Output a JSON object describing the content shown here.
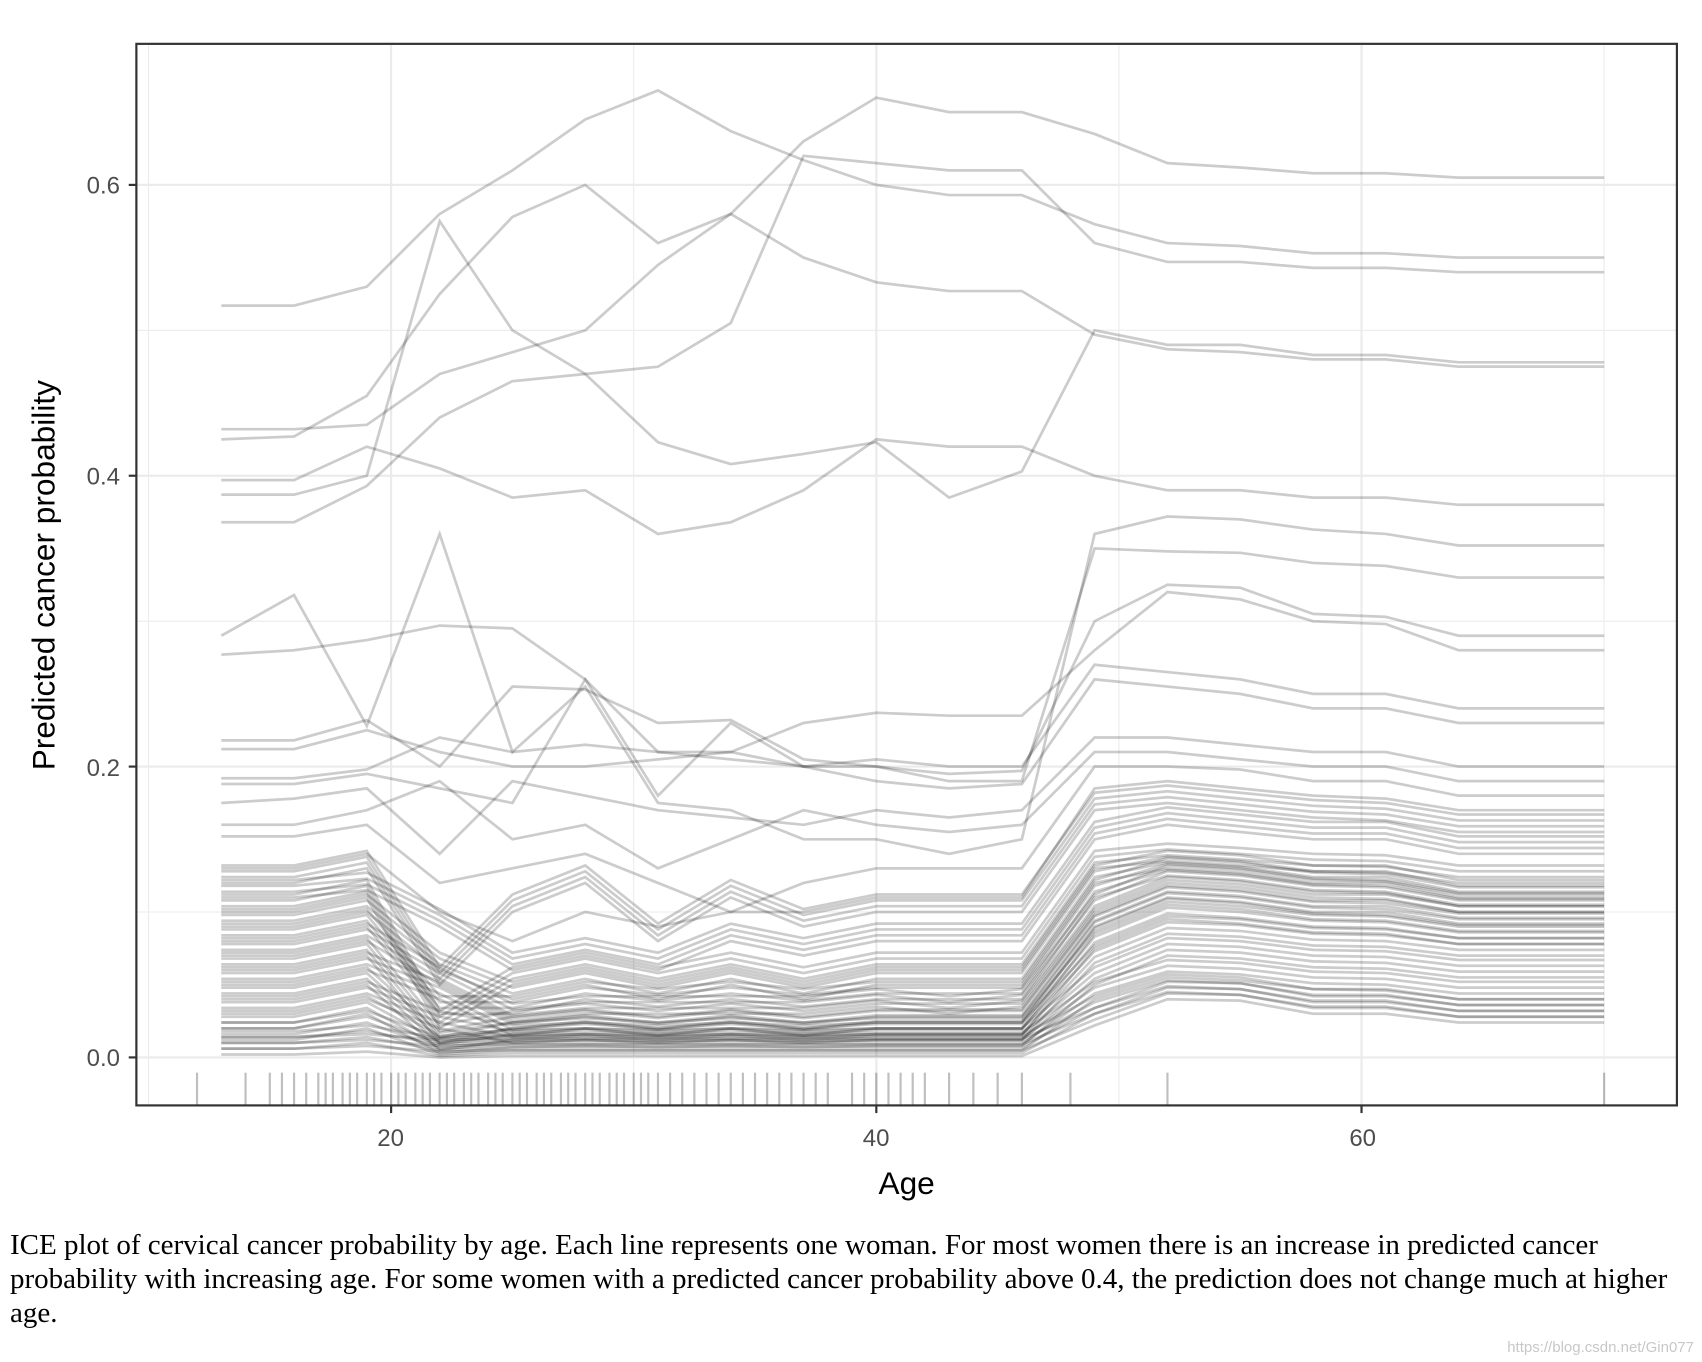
{
  "chart_data": {
    "type": "line",
    "title": "",
    "xlabel": "Age",
    "ylabel": "Predicted cancer probability",
    "xlim": [
      9.5,
      73
    ],
    "ylim": [
      -0.033,
      0.697
    ],
    "xticks": [
      20,
      40,
      60
    ],
    "yticks": [
      0.0,
      0.2,
      0.4,
      0.6
    ],
    "xtick_labels": [
      "20",
      "40",
      "60"
    ],
    "ytick_labels": [
      "0.0",
      "0.2",
      "0.4",
      "0.6"
    ],
    "grid": true,
    "line_color": "#000000",
    "line_opacity": 0.2,
    "x": [
      13,
      16,
      19,
      22,
      25,
      28,
      31,
      34,
      37,
      40,
      43,
      46,
      49,
      52,
      55,
      58,
      61,
      64,
      70
    ],
    "series": [
      {
        "values": [
          0.517,
          0.517,
          0.53,
          0.58,
          0.61,
          0.645,
          0.665,
          0.637,
          0.617,
          0.6,
          0.593,
          0.593,
          0.573,
          0.56,
          0.558,
          0.553,
          0.553,
          0.55,
          0.55
        ]
      },
      {
        "values": [
          0.432,
          0.432,
          0.435,
          0.47,
          0.485,
          0.5,
          0.545,
          0.58,
          0.63,
          0.66,
          0.65,
          0.65,
          0.635,
          0.615,
          0.612,
          0.608,
          0.608,
          0.605,
          0.605
        ]
      },
      {
        "values": [
          0.425,
          0.427,
          0.455,
          0.525,
          0.578,
          0.6,
          0.56,
          0.58,
          0.55,
          0.533,
          0.527,
          0.527,
          0.497,
          0.487,
          0.485,
          0.48,
          0.48,
          0.475,
          0.475
        ]
      },
      {
        "values": [
          0.397,
          0.397,
          0.42,
          0.405,
          0.385,
          0.39,
          0.36,
          0.368,
          0.39,
          0.425,
          0.42,
          0.42,
          0.4,
          0.39,
          0.39,
          0.385,
          0.385,
          0.38,
          0.38
        ]
      },
      {
        "values": [
          0.387,
          0.387,
          0.4,
          0.575,
          0.5,
          0.47,
          0.423,
          0.408,
          0.415,
          0.423,
          0.385,
          0.403,
          0.5,
          0.49,
          0.49,
          0.483,
          0.483,
          0.478,
          0.478
        ]
      },
      {
        "values": [
          0.368,
          0.368,
          0.393,
          0.44,
          0.465,
          0.47,
          0.475,
          0.505,
          0.62,
          0.615,
          0.61,
          0.61,
          0.56,
          0.547,
          0.547,
          0.543,
          0.543,
          0.54,
          0.54
        ]
      },
      {
        "values": [
          0.29,
          0.318,
          0.228,
          0.36,
          0.21,
          0.255,
          0.175,
          0.17,
          0.15,
          0.15,
          0.14,
          0.15,
          0.36,
          0.372,
          0.37,
          0.363,
          0.36,
          0.352,
          0.352
        ]
      },
      {
        "values": [
          0.277,
          0.28,
          0.287,
          0.297,
          0.295,
          0.26,
          0.21,
          0.205,
          0.2,
          0.2,
          0.19,
          0.19,
          0.35,
          0.348,
          0.347,
          0.34,
          0.338,
          0.33,
          0.33
        ]
      },
      {
        "values": [
          0.218,
          0.218,
          0.232,
          0.2,
          0.255,
          0.253,
          0.23,
          0.232,
          0.205,
          0.2,
          0.195,
          0.197,
          0.3,
          0.325,
          0.323,
          0.305,
          0.303,
          0.29,
          0.29
        ]
      },
      {
        "values": [
          0.212,
          0.212,
          0.225,
          0.21,
          0.2,
          0.2,
          0.205,
          0.21,
          0.23,
          0.237,
          0.235,
          0.235,
          0.28,
          0.32,
          0.315,
          0.3,
          0.298,
          0.28,
          0.28
        ]
      },
      {
        "values": [
          0.192,
          0.192,
          0.198,
          0.22,
          0.21,
          0.215,
          0.21,
          0.21,
          0.2,
          0.205,
          0.2,
          0.2,
          0.27,
          0.265,
          0.26,
          0.25,
          0.25,
          0.24,
          0.24
        ]
      },
      {
        "values": [
          0.188,
          0.188,
          0.195,
          0.185,
          0.175,
          0.26,
          0.18,
          0.23,
          0.2,
          0.19,
          0.185,
          0.188,
          0.26,
          0.255,
          0.25,
          0.24,
          0.24,
          0.23,
          0.23
        ]
      },
      {
        "values": [
          0.175,
          0.178,
          0.185,
          0.14,
          0.19,
          0.18,
          0.17,
          0.165,
          0.16,
          0.17,
          0.165,
          0.17,
          0.22,
          0.22,
          0.215,
          0.21,
          0.21,
          0.2,
          0.2
        ]
      },
      {
        "values": [
          0.16,
          0.16,
          0.17,
          0.19,
          0.15,
          0.16,
          0.13,
          0.15,
          0.17,
          0.16,
          0.155,
          0.16,
          0.21,
          0.21,
          0.205,
          0.2,
          0.2,
          0.19,
          0.19
        ]
      },
      {
        "values": [
          0.152,
          0.152,
          0.16,
          0.12,
          0.13,
          0.14,
          0.12,
          0.1,
          0.12,
          0.13,
          0.13,
          0.13,
          0.2,
          0.2,
          0.198,
          0.19,
          0.19,
          0.18,
          0.18
        ]
      },
      {
        "values": [
          0.13,
          0.13,
          0.14,
          0.1,
          0.08,
          0.1,
          0.09,
          0.1,
          0.1,
          0.11,
          0.11,
          0.11,
          0.185,
          0.19,
          0.185,
          0.18,
          0.178,
          0.17,
          0.17
        ]
      },
      {
        "values": [
          0.12,
          0.12,
          0.13,
          0.05,
          0.1,
          0.12,
          0.08,
          0.11,
          0.09,
          0.1,
          0.1,
          0.1,
          0.17,
          0.175,
          0.17,
          0.165,
          0.163,
          0.155,
          0.155
        ]
      },
      {
        "values": [
          0.11,
          0.11,
          0.115,
          0.09,
          0.06,
          0.07,
          0.06,
          0.08,
          0.07,
          0.08,
          0.08,
          0.08,
          0.15,
          0.16,
          0.155,
          0.15,
          0.15,
          0.14,
          0.14
        ]
      },
      {
        "values": [
          0.1,
          0.1,
          0.11,
          0.02,
          0.05,
          0.06,
          0.05,
          0.06,
          0.05,
          0.06,
          0.06,
          0.06,
          0.13,
          0.135,
          0.132,
          0.128,
          0.127,
          0.12,
          0.12
        ]
      },
      {
        "values": [
          0.09,
          0.09,
          0.1,
          0.06,
          0.04,
          0.05,
          0.04,
          0.05,
          0.04,
          0.05,
          0.05,
          0.05,
          0.12,
          0.13,
          0.127,
          0.12,
          0.12,
          0.11,
          0.11
        ]
      },
      {
        "values": [
          0.08,
          0.08,
          0.09,
          0.03,
          0.03,
          0.04,
          0.035,
          0.04,
          0.035,
          0.04,
          0.04,
          0.04,
          0.11,
          0.125,
          0.122,
          0.115,
          0.114,
          0.105,
          0.105
        ]
      },
      {
        "values": [
          0.07,
          0.07,
          0.08,
          0.05,
          0.025,
          0.03,
          0.03,
          0.03,
          0.03,
          0.035,
          0.03,
          0.035,
          0.1,
          0.12,
          0.117,
          0.11,
          0.109,
          0.1,
          0.1
        ]
      },
      {
        "values": [
          0.06,
          0.06,
          0.07,
          0.01,
          0.02,
          0.025,
          0.02,
          0.025,
          0.02,
          0.025,
          0.025,
          0.025,
          0.09,
          0.11,
          0.107,
          0.1,
          0.1,
          0.092,
          0.092
        ]
      },
      {
        "values": [
          0.05,
          0.05,
          0.06,
          0.04,
          0.015,
          0.02,
          0.015,
          0.02,
          0.015,
          0.02,
          0.02,
          0.02,
          0.085,
          0.105,
          0.102,
          0.095,
          0.094,
          0.087,
          0.087
        ]
      },
      {
        "values": [
          0.04,
          0.04,
          0.05,
          0.005,
          0.012,
          0.015,
          0.012,
          0.015,
          0.012,
          0.015,
          0.015,
          0.015,
          0.075,
          0.095,
          0.092,
          0.086,
          0.085,
          0.078,
          0.078
        ]
      },
      {
        "values": [
          0.03,
          0.03,
          0.04,
          0.02,
          0.01,
          0.012,
          0.01,
          0.012,
          0.01,
          0.012,
          0.012,
          0.012,
          0.065,
          0.085,
          0.083,
          0.077,
          0.076,
          0.07,
          0.07
        ]
      },
      {
        "values": [
          0.02,
          0.02,
          0.03,
          0.003,
          0.007,
          0.008,
          0.007,
          0.008,
          0.007,
          0.008,
          0.008,
          0.008,
          0.05,
          0.07,
          0.068,
          0.062,
          0.061,
          0.055,
          0.055
        ]
      },
      {
        "values": [
          0.012,
          0.012,
          0.02,
          0.002,
          0.005,
          0.005,
          0.005,
          0.005,
          0.005,
          0.005,
          0.005,
          0.005,
          0.04,
          0.055,
          0.053,
          0.047,
          0.046,
          0.04,
          0.04
        ]
      },
      {
        "values": [
          0.006,
          0.006,
          0.01,
          0.001,
          0.003,
          0.003,
          0.003,
          0.003,
          0.003,
          0.003,
          0.003,
          0.003,
          0.03,
          0.045,
          0.043,
          0.035,
          0.035,
          0.028,
          0.028
        ]
      },
      {
        "values": [
          0.002,
          0.002,
          0.004,
          0.0,
          0.001,
          0.001,
          0.001,
          0.001,
          0.001,
          0.001,
          0.001,
          0.001,
          0.022,
          0.04,
          0.039,
          0.03,
          0.03,
          0.024,
          0.024
        ]
      }
    ],
    "rug_ages": [
      12,
      14,
      15,
      15.5,
      16,
      16.5,
      17,
      17.3,
      17.6,
      18,
      18.3,
      18.6,
      19,
      19.3,
      19.6,
      20,
      20.3,
      20.6,
      21,
      21.3,
      21.6,
      22,
      22.3,
      22.6,
      23,
      23.3,
      23.6,
      24,
      24.3,
      24.6,
      25,
      25.3,
      25.6,
      26,
      26.3,
      26.6,
      27,
      27.3,
      27.6,
      28,
      28.3,
      28.6,
      29,
      29.3,
      29.6,
      30,
      30.3,
      30.6,
      31,
      31.5,
      32,
      32.5,
      33,
      33.5,
      34,
      34.5,
      35,
      35.5,
      36,
      36.5,
      37,
      37.5,
      38,
      39,
      39.5,
      40,
      40.5,
      41,
      41.5,
      42,
      43,
      44,
      45,
      46,
      48,
      52,
      70
    ]
  },
  "caption": "ICE plot of cervical cancer probability by age. Each line represents one woman. For most women there is an increase in predicted cancer probability with increasing age. For some women with a predicted cancer probability above 0.4, the prediction does not change much at higher age.",
  "watermark": "https://blog.csdn.net/Gin077"
}
